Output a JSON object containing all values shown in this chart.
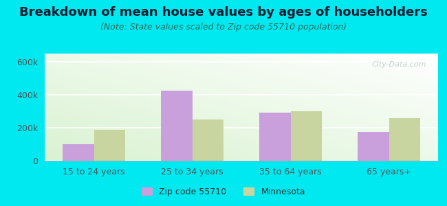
{
  "title": "Breakdown of mean house values by ages of householders",
  "subtitle": "(Note: State values scaled to Zip code 55710 population)",
  "categories": [
    "15 to 24 years",
    "25 to 34 years",
    "35 to 64 years",
    "65 years+"
  ],
  "zip_values": [
    100000,
    425000,
    290000,
    173000
  ],
  "state_values": [
    188000,
    250000,
    300000,
    258000
  ],
  "zip_color": "#c9a0dc",
  "state_color": "#c8d5a0",
  "zip_label": "Zip code 55710",
  "state_label": "Minnesota",
  "ylim": [
    0,
    650000
  ],
  "yticks": [
    0,
    200000,
    400000,
    600000
  ],
  "ytick_labels": [
    "0",
    "200k",
    "400k",
    "600k"
  ],
  "background_outer": "#00e8f0",
  "bar_width": 0.32,
  "title_fontsize": 13,
  "subtitle_fontsize": 9,
  "tick_fontsize": 9,
  "legend_fontsize": 9
}
